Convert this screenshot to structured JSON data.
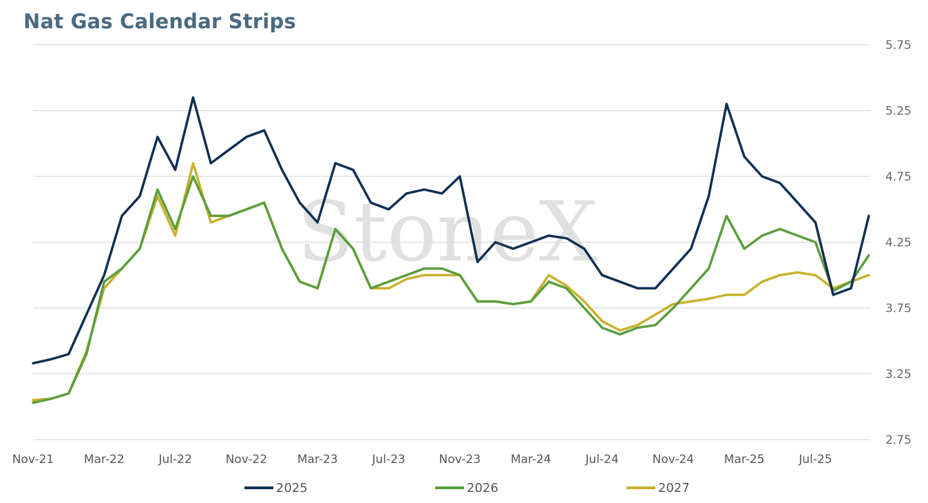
{
  "chart_data": {
    "type": "line",
    "title": "Nat Gas Calendar Strips",
    "watermark": "StoneX",
    "ylim": [
      2.75,
      5.75
    ],
    "yticks": [
      "5.75",
      "5.25",
      "4.75",
      "4.25",
      "3.75",
      "3.25",
      "2.75"
    ],
    "xticks": [
      "Nov-21",
      "Mar-22",
      "Jul-22",
      "Nov-22",
      "Mar-23",
      "Jul-23",
      "Nov-23",
      "Mar-24",
      "Jul-24",
      "Nov-24",
      "Mar-25",
      "Jul-25"
    ],
    "legend_position": "bottom",
    "grid": true,
    "x": [
      "Nov-21",
      "Dec-21",
      "Jan-22",
      "Feb-22",
      "Mar-22",
      "Apr-22",
      "May-22",
      "Jun-22",
      "Jul-22",
      "Aug-22",
      "Sep-22",
      "Oct-22",
      "Nov-22",
      "Dec-22",
      "Jan-23",
      "Feb-23",
      "Mar-23",
      "Apr-23",
      "May-23",
      "Jun-23",
      "Jul-23",
      "Aug-23",
      "Sep-23",
      "Oct-23",
      "Nov-23",
      "Dec-23",
      "Jan-24",
      "Feb-24",
      "Mar-24",
      "Apr-24",
      "May-24",
      "Jun-24",
      "Jul-24",
      "Aug-24",
      "Sep-24",
      "Oct-24",
      "Nov-24",
      "Dec-24",
      "Jan-25",
      "Feb-25",
      "Mar-25",
      "Apr-25",
      "May-25",
      "Jun-25",
      "Jul-25",
      "Aug-25",
      "Sep-25",
      "Oct-25"
    ],
    "series": [
      {
        "name": "2025",
        "color": "#0f2f52",
        "values": [
          3.33,
          3.36,
          3.4,
          3.7,
          4.0,
          4.45,
          4.6,
          5.05,
          4.8,
          5.35,
          4.85,
          4.95,
          5.05,
          5.1,
          4.8,
          4.55,
          4.4,
          4.85,
          4.8,
          4.55,
          4.5,
          4.62,
          4.65,
          4.62,
          4.75,
          4.1,
          4.25,
          4.2,
          4.25,
          4.3,
          4.28,
          4.2,
          4.0,
          3.95,
          3.9,
          3.9,
          4.05,
          4.2,
          4.6,
          5.3,
          4.9,
          4.75,
          4.7,
          4.55,
          4.4,
          3.85,
          3.9,
          4.45
        ]
      },
      {
        "name": "2026",
        "color": "#5a9e3c",
        "values": [
          3.03,
          3.06,
          3.1,
          3.4,
          3.95,
          4.05,
          4.2,
          4.65,
          4.35,
          4.75,
          4.45,
          4.45,
          4.5,
          4.55,
          4.2,
          3.95,
          3.9,
          4.35,
          4.2,
          3.9,
          3.95,
          4.0,
          4.05,
          4.05,
          4.0,
          3.8,
          3.8,
          3.78,
          3.8,
          3.95,
          3.9,
          3.75,
          3.6,
          3.55,
          3.6,
          3.62,
          3.75,
          3.9,
          4.05,
          4.45,
          4.2,
          4.3,
          4.35,
          4.3,
          4.25,
          3.88,
          3.95,
          4.15
        ]
      },
      {
        "name": "2027",
        "color": "#c9b02c",
        "values": [
          3.05,
          3.06,
          3.1,
          3.42,
          3.9,
          4.05,
          4.2,
          4.6,
          4.3,
          4.85,
          4.4,
          4.45,
          4.5,
          4.55,
          4.2,
          3.95,
          3.9,
          4.35,
          4.2,
          3.9,
          3.9,
          3.97,
          4.0,
          4.0,
          4.0,
          3.8,
          3.8,
          3.78,
          3.8,
          4.0,
          3.92,
          3.8,
          3.65,
          3.58,
          3.62,
          3.7,
          3.78,
          3.8,
          3.82,
          3.85,
          3.85,
          3.95,
          4.0,
          4.02,
          4.0,
          3.9,
          3.95,
          4.0
        ]
      }
    ]
  }
}
